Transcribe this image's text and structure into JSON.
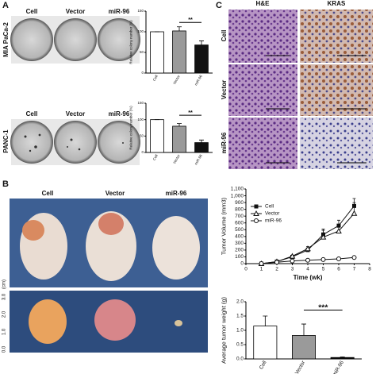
{
  "panels": {
    "a": "A",
    "b": "B",
    "c": "C"
  },
  "dish_labels": {
    "row1": [
      "Cell",
      "Vector",
      "miR-96"
    ],
    "row2": [
      "Cell",
      "Vector",
      "miR-96"
    ],
    "lines": [
      "MIA PaCa-2",
      "PANC-1"
    ]
  },
  "ihc": {
    "columns": [
      "H&E",
      "KRAS"
    ],
    "rows": [
      "Cell",
      "Vector",
      "miR-96"
    ]
  },
  "mice": {
    "labels": [
      "Cell",
      "Vector",
      "miR-96"
    ],
    "scale_unit": "(cm)",
    "scale": [
      "3.0",
      "2.0",
      "1.0",
      "0.0"
    ]
  },
  "chart_data": [
    {
      "type": "bar",
      "y_label": "Relative colony number (%)",
      "categories": [
        "Cell",
        "Vector",
        "miR-96"
      ],
      "values": [
        100,
        102,
        68
      ],
      "errors": [
        0,
        10,
        10
      ],
      "colors": [
        "#ffffff",
        "#9a9a9a",
        "#111111"
      ],
      "ylim": [
        0,
        150
      ],
      "yticks": [
        0,
        50,
        100,
        150
      ],
      "annotation": "**"
    },
    {
      "type": "bar",
      "y_label": "Relative colony number (%)",
      "categories": [
        "Cell",
        "Vector",
        "miR-96"
      ],
      "values": [
        100,
        80,
        30
      ],
      "errors": [
        0,
        8,
        8
      ],
      "colors": [
        "#ffffff",
        "#9a9a9a",
        "#111111"
      ],
      "ylim": [
        0,
        150
      ],
      "yticks": [
        0,
        50,
        100,
        150
      ],
      "annotation": "**"
    },
    {
      "type": "line",
      "x_label": "Time (wk)",
      "y_label": "Tumor Volume (mm3)",
      "x": [
        1,
        2,
        3,
        4,
        5,
        6,
        7
      ],
      "xlim": [
        0,
        8
      ],
      "xticks": [
        0,
        1,
        2,
        3,
        4,
        5,
        6,
        7,
        8
      ],
      "ylim": [
        0,
        1100
      ],
      "yticks": [
        0,
        100,
        200,
        300,
        400,
        500,
        600,
        700,
        800,
        900,
        {
          "value": 1000,
          "label": "1,000"
        },
        {
          "value": 1100,
          "label": "1,100"
        }
      ],
      "legend": "upper left",
      "series": [
        {
          "name": "Cell",
          "color": "#111111",
          "marker": "square",
          "values": [
            0,
            30,
            100,
            200,
            430,
            560,
            850
          ],
          "errors": [
            0,
            0,
            10,
            30,
            80,
            80,
            110
          ]
        },
        {
          "name": "Vector",
          "color": "#111111",
          "marker": "triangle",
          "values": [
            0,
            30,
            110,
            220,
            390,
            480,
            740
          ],
          "errors": [
            0,
            0,
            10,
            30,
            100,
            90,
            160
          ]
        },
        {
          "name": "miR-96",
          "color": "#111111",
          "marker": "circle",
          "values": [
            0,
            20,
            40,
            50,
            60,
            70,
            90
          ],
          "errors": [
            0,
            0,
            0,
            0,
            0,
            0,
            0
          ]
        }
      ]
    },
    {
      "type": "bar",
      "y_label": "Average tumor weight (g)",
      "categories": [
        "Cell",
        "Vector",
        "miR-96"
      ],
      "values": [
        1.15,
        0.82,
        0.05
      ],
      "errors": [
        0.35,
        0.4,
        0.02
      ],
      "colors": [
        "#ffffff",
        "#9a9a9a",
        "#111111"
      ],
      "ylim": [
        0,
        2
      ],
      "yticks": [
        {
          "value": 0,
          "label": "0.0"
        },
        0.5,
        {
          "value": 1,
          "label": "1.0"
        },
        1.5,
        {
          "value": 2,
          "label": "2.0"
        }
      ],
      "annotation": "***"
    }
  ]
}
